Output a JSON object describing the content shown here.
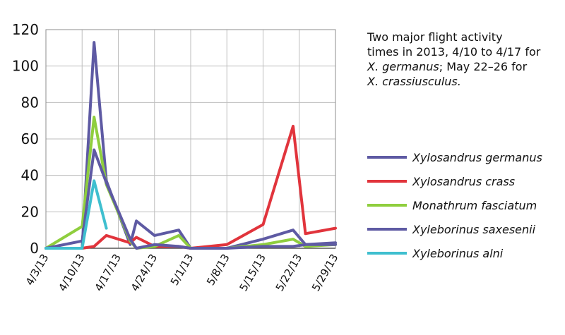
{
  "chart_data": {
    "type": "line",
    "categories": [
      "4/3/13",
      "4/10/13",
      "4/17/13",
      "4/24/13",
      "5/1/13",
      "5/8/13",
      "5/15/13",
      "5/22/13",
      "5/29/13"
    ],
    "y_ticks": [
      "0",
      "20",
      "40",
      "60",
      "80",
      "100",
      "120"
    ],
    "ylim": [
      0,
      120
    ],
    "grid": true,
    "legend_position": "right",
    "series": [
      {
        "name": "Xylosandrus germanus",
        "color": "#5e5aa3",
        "points": [
          [
            0,
            0
          ],
          [
            1,
            0
          ],
          [
            1.33,
            113
          ],
          [
            1.67,
            37
          ],
          [
            2.33,
            2
          ],
          [
            2.5,
            15
          ],
          [
            3,
            7
          ],
          [
            3.67,
            10
          ],
          [
            4,
            0
          ],
          [
            5,
            0
          ],
          [
            6,
            5
          ],
          [
            6.83,
            10
          ],
          [
            7.17,
            2
          ],
          [
            8,
            3
          ]
        ]
      },
      {
        "name": "Xylosandrus crass",
        "color": "#e1343c",
        "points": [
          [
            0,
            0
          ],
          [
            1,
            0
          ],
          [
            1.33,
            1
          ],
          [
            1.67,
            7
          ],
          [
            2.33,
            3
          ],
          [
            2.5,
            6
          ],
          [
            3,
            1
          ],
          [
            3.67,
            1
          ],
          [
            4,
            0
          ],
          [
            5,
            2
          ],
          [
            6,
            13
          ],
          [
            6.83,
            67
          ],
          [
            7.17,
            8
          ],
          [
            8,
            11
          ]
        ]
      },
      {
        "name": "Monathrum fasciatum",
        "color": "#8fce3e",
        "points": [
          [
            0,
            0
          ],
          [
            1,
            12
          ],
          [
            1.33,
            72
          ],
          [
            1.67,
            35
          ],
          [
            2.33,
            4
          ],
          [
            2.5,
            0
          ],
          [
            3,
            1
          ],
          [
            3.67,
            7
          ],
          [
            4,
            0
          ],
          [
            5,
            0
          ],
          [
            6,
            2
          ],
          [
            6.83,
            5
          ],
          [
            7.17,
            1
          ],
          [
            8,
            2
          ]
        ]
      },
      {
        "name": "Xyleborinus saxesenii",
        "color": "#5e5aa3",
        "points": [
          [
            0,
            0
          ],
          [
            1,
            4
          ],
          [
            1.33,
            54
          ],
          [
            1.67,
            36
          ],
          [
            2.33,
            5
          ],
          [
            2.5,
            0
          ],
          [
            3,
            2
          ],
          [
            3.67,
            1
          ],
          [
            4,
            0
          ],
          [
            5,
            0
          ],
          [
            6,
            1
          ],
          [
            6.83,
            1
          ],
          [
            7.17,
            2
          ],
          [
            8,
            2
          ]
        ]
      },
      {
        "name": "Xyleborinus alni",
        "color": "#3fbfcf",
        "points": [
          [
            0,
            0
          ],
          [
            1,
            0
          ],
          [
            1.33,
            37
          ],
          [
            1.67,
            11
          ]
        ]
      }
    ]
  },
  "annotation": {
    "line1": "Two major flight activity",
    "line2": "times in 2013, 4/10 to 4/17 for",
    "line3_species": "X. germanus",
    "line3_rest": "; May 22–26 for",
    "line4_species": "X. crassiusculus."
  }
}
